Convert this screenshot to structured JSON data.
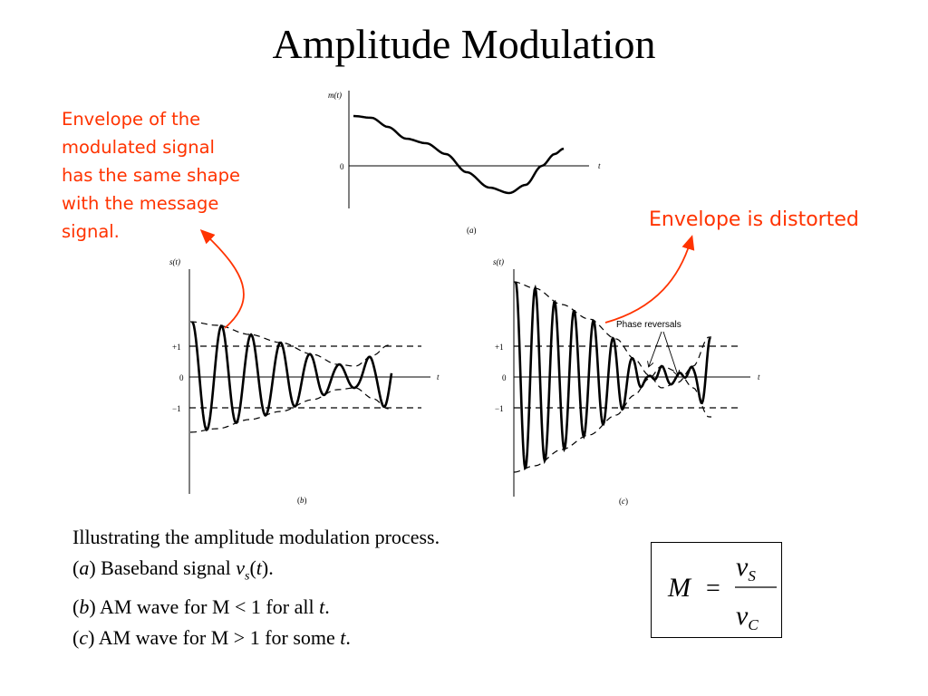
{
  "title": "Amplitude Modulation",
  "annotations": {
    "left_lines": [
      "Envelope of the",
      "modulated signal",
      "has the same shape",
      "with the message",
      "signal."
    ],
    "right": "Envelope is distorted",
    "color": "#ff3300"
  },
  "figure": {
    "a": {
      "y_label": "m",
      "y_label_arg": "t",
      "zero": "0",
      "x_label": "t",
      "caption": "a"
    },
    "b": {
      "y_label": "s",
      "y_label_arg": "t",
      "plus_one": "+1",
      "zero": "0",
      "minus_one": "−1",
      "x_label": "t",
      "caption": "b"
    },
    "c": {
      "y_label": "s",
      "y_label_arg": "t",
      "plus_one": "+1",
      "zero": "0",
      "minus_one": "−1",
      "x_label": "t",
      "caption": "c",
      "phase_reversals": "Phase reversals"
    }
  },
  "caption": {
    "line1": "Illustrating the amplitude modulation process.",
    "line2": {
      "tag": "a",
      "text": ") Baseband signal ",
      "var": "v",
      "sub": "s",
      "arg": "t"
    },
    "line3": {
      "tag": "b",
      "text": ") AM wave for M < 1 for all ",
      "var": "t"
    },
    "line4": {
      "tag": "c",
      "text": ") AM wave for M > 1 for some ",
      "var": "t"
    }
  },
  "formula": {
    "lhs": "M",
    "eq": "=",
    "num": "v",
    "num_sub": "S",
    "den": "v",
    "den_sub": "C"
  }
}
